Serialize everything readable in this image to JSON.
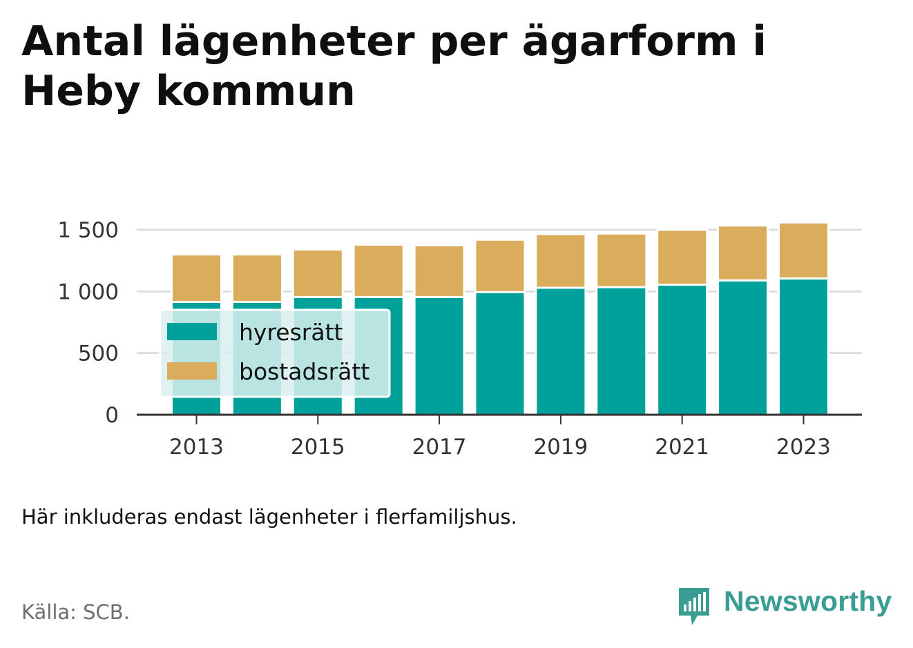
{
  "title": "Antal lägenheter per ägarform i Heby kommun",
  "note": "Här inkluderas endast lägenheter i flerfamiljshus.",
  "source": "Källa: SCB.",
  "brand": {
    "name": "Newsworthy",
    "icon": "newsworthy-logo-icon",
    "color": "#3a9d94"
  },
  "colors": {
    "hyresratt": "#00a19a",
    "bostadsratt": "#d9ad5b",
    "grid": "#dddddd",
    "axis": "#333333"
  },
  "chart_data": {
    "type": "bar",
    "stacked": true,
    "categories": [
      "2013",
      "2014",
      "2015",
      "2016",
      "2017",
      "2018",
      "2019",
      "2020",
      "2021",
      "2022",
      "2023"
    ],
    "x_tick_labels": [
      "2013",
      "2015",
      "2017",
      "2019",
      "2021",
      "2023"
    ],
    "series": [
      {
        "name": "hyresrätt",
        "color": "#00a19a",
        "values": [
          915,
          915,
          955,
          955,
          955,
          995,
          1030,
          1035,
          1055,
          1090,
          1105
        ]
      },
      {
        "name": "bostadsrätt",
        "color": "#d9ad5b",
        "values": [
          385,
          385,
          385,
          425,
          420,
          425,
          435,
          435,
          445,
          445,
          455
        ]
      }
    ],
    "y_ticks": [
      0,
      500,
      1000,
      1500
    ],
    "y_tick_labels": [
      "0",
      "500",
      "1 000",
      "1 500"
    ],
    "ylim": [
      0,
      1500
    ],
    "grid": true,
    "legend_position": "bottom-left",
    "xlabel": "",
    "ylabel": ""
  }
}
